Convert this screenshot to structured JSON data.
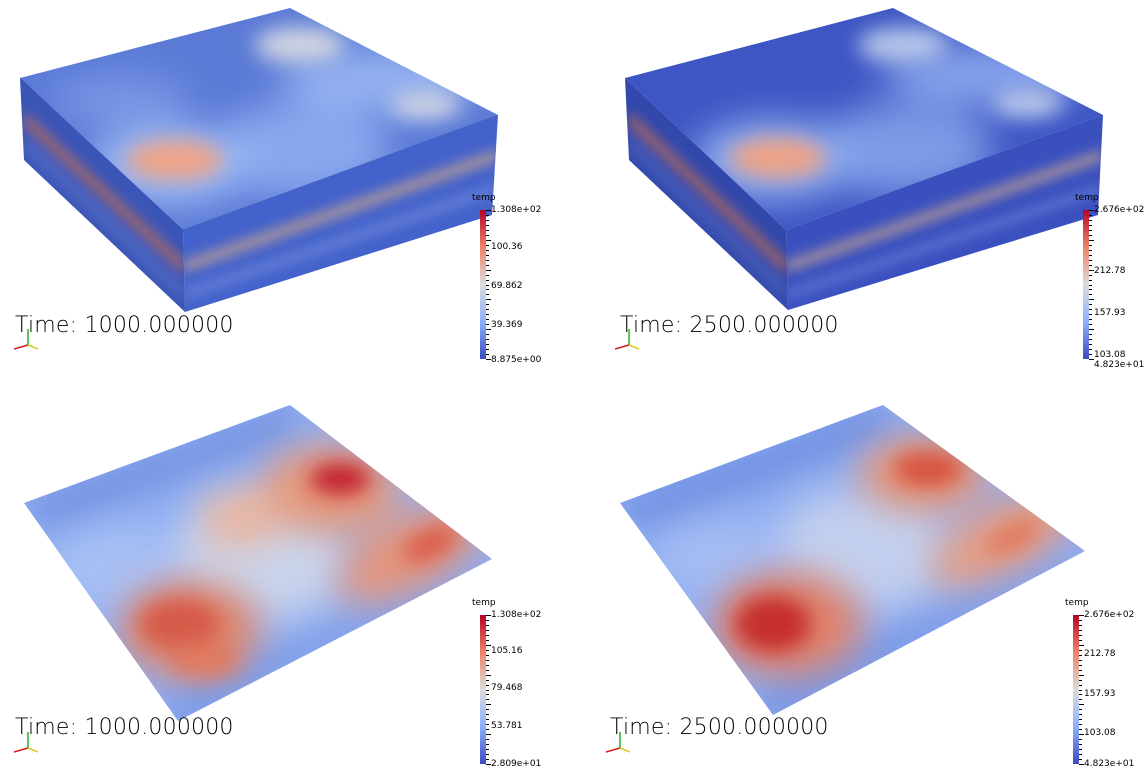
{
  "palette": {
    "low": "#3b4cc0",
    "mid": "#dddddd",
    "high": "#b40426"
  },
  "panels": [
    {
      "id": "top-left",
      "view": "3d-box",
      "time_label": "Time: 1000.000000",
      "colorbar": {
        "title": "temp",
        "labels": [
          "1.308e+02",
          "100.36",
          "69.862",
          "39.369",
          "8.875e+00"
        ]
      }
    },
    {
      "id": "top-right",
      "view": "3d-box",
      "time_label": "Time: 2500.000000",
      "colorbar": {
        "title": "temp",
        "labels": [
          "2.676e+02",
          "212.78",
          "157.93",
          "103.08",
          "4.823e+01"
        ]
      }
    },
    {
      "id": "bottom-left",
      "view": "surface-slice",
      "time_label": "Time: 1000.000000",
      "colorbar": {
        "title": "temp",
        "labels": [
          "1.308e+02",
          "105.16",
          "79.468",
          "53.781",
          "2.809e+01"
        ]
      }
    },
    {
      "id": "bottom-right",
      "view": "surface-slice",
      "time_label": "Time: 2500.000000",
      "colorbar": {
        "title": "temp",
        "labels": [
          "2.676e+02",
          "212.78",
          "157.93",
          "103.08",
          "4.823e+01"
        ]
      }
    }
  ],
  "orientation_axes_icon": "xyz-axes-icon"
}
